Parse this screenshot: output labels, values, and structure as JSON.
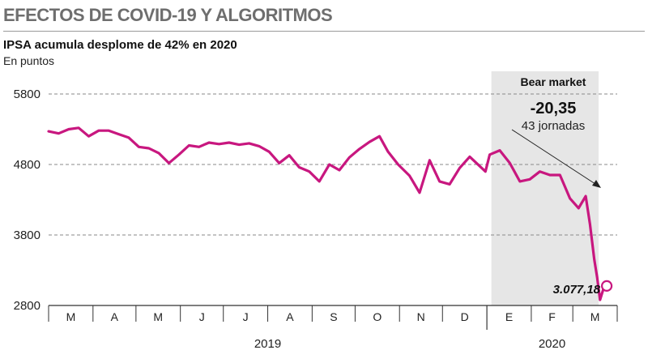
{
  "header": {
    "kicker": "EFECTOS DE COVID-19 Y ALGORITMOS",
    "title": "IPSA acumula desplome de 42% en 2020",
    "subtitle": "En puntos"
  },
  "colors": {
    "line": "#c8177f",
    "band": "#e6e6e6",
    "grid": "#8a8a8a"
  },
  "chart_data": {
    "type": "line",
    "ylim": [
      2800,
      5800
    ],
    "yticks": [
      5800,
      4800,
      3800,
      2800
    ],
    "ytick_labels": [
      "5800",
      "4800",
      "3800",
      "2800"
    ],
    "x_months": [
      "M",
      "A",
      "M",
      "J",
      "J",
      "A",
      "S",
      "O",
      "N",
      "D",
      "E",
      "F",
      "M"
    ],
    "years": [
      "2019",
      "2020"
    ],
    "grid": true,
    "annotation": {
      "band_label": "Bear market",
      "change": "-20,35",
      "sessions": "43 jornadas",
      "last_value_label": "3.077,18"
    },
    "series": [
      {
        "x": [
          "2019-03-01",
          "2019-03-08",
          "2019-03-15",
          "2019-03-22",
          "2019-03-29",
          "2019-04-05",
          "2019-04-12",
          "2019-04-19",
          "2019-04-26",
          "2019-05-03",
          "2019-05-10",
          "2019-05-17",
          "2019-05-24",
          "2019-05-31",
          "2019-06-07",
          "2019-06-14",
          "2019-06-21",
          "2019-06-28",
          "2019-07-05",
          "2019-07-12",
          "2019-07-19",
          "2019-07-26",
          "2019-08-02",
          "2019-08-09",
          "2019-08-16",
          "2019-08-23",
          "2019-08-30",
          "2019-09-06",
          "2019-09-13",
          "2019-09-20",
          "2019-09-27",
          "2019-10-04",
          "2019-10-11",
          "2019-10-18",
          "2019-10-24",
          "2019-10-31",
          "2019-11-08",
          "2019-11-15",
          "2019-11-22",
          "2019-11-29",
          "2019-12-06",
          "2019-12-13",
          "2019-12-20",
          "2019-12-31",
          "2020-01-03",
          "2020-01-10",
          "2020-01-17",
          "2020-01-24",
          "2020-01-31",
          "2020-02-07",
          "2020-02-14",
          "2020-02-21",
          "2020-02-28",
          "2020-03-05",
          "2020-03-10",
          "2020-03-13",
          "2020-03-16",
          "2020-03-18",
          "2020-03-20",
          "2020-03-23"
        ],
        "y": [
          5270,
          5240,
          5300,
          5320,
          5200,
          5280,
          5280,
          5230,
          5180,
          5050,
          5030,
          4960,
          4820,
          4940,
          5070,
          5050,
          5110,
          5090,
          5110,
          5080,
          5100,
          5060,
          4980,
          4820,
          4930,
          4760,
          4700,
          4560,
          4800,
          4720,
          4900,
          5020,
          5120,
          5200,
          4980,
          4800,
          4640,
          4400,
          4860,
          4560,
          4520,
          4750,
          4910,
          4700,
          4940,
          5000,
          4820,
          4560,
          4590,
          4700,
          4650,
          4650,
          4320,
          4180,
          4350,
          3950,
          3450,
          3200,
          2880,
          3077
        ]
      }
    ]
  }
}
